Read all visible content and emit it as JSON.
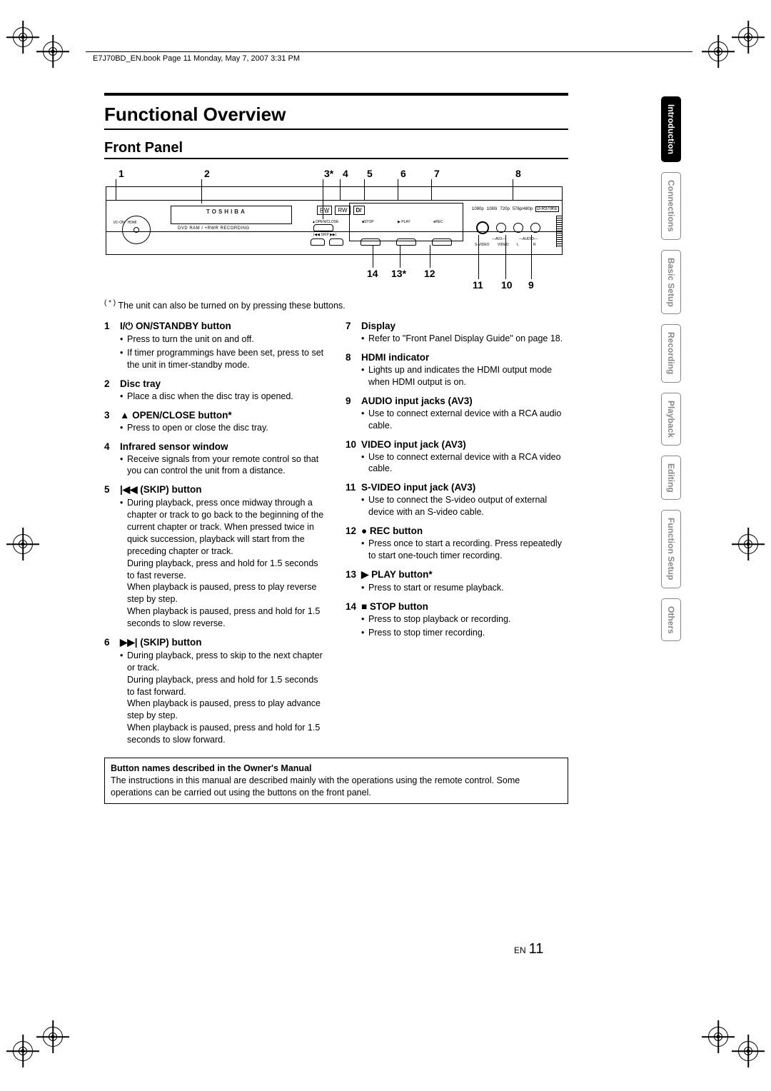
{
  "header": {
    "stamp": "E7J70BD_EN.book  Page 11  Monday, May 7, 2007  3:31 PM"
  },
  "titles": {
    "main": "Functional Overview",
    "sub": "Front Panel"
  },
  "diagram": {
    "top_callouts": [
      "1",
      "2",
      "3*",
      "4",
      "5",
      "6",
      "7",
      "8"
    ],
    "top_x": [
      12,
      132,
      300,
      326,
      360,
      407,
      454,
      568
    ],
    "bottom_callouts_right": [
      "11",
      "10",
      "9"
    ],
    "bottom_callouts_mid": [
      "14",
      "13*",
      "12"
    ],
    "brand": "TOSHIBA",
    "tray_label": "DVD  RAM / +RWR  RECORDING",
    "hdmi_labels": [
      "1080p",
      "1080i",
      "720p",
      "576p/480p",
      "D-R370KE"
    ],
    "btn_labels": {
      "open": "▲OPEN/CLOSE",
      "skipb": "|◀◀   SKIP   ▶▶|",
      "stop": "■STOP",
      "play": "▶ PLAY",
      "rec": "●REC"
    },
    "jack_labels": {
      "sv": "S-VIDEO",
      "vid": "VIDEO",
      "l": "L",
      "r": "R",
      "av3": "—AV3—",
      "aud": "—AUDIO—"
    }
  },
  "asterisk_note": "The unit can also be turned on by pressing these buttons.",
  "asterisk_mark": "( * )",
  "left_items": [
    {
      "num": "1",
      "title_pre": "I/",
      "title_sym": "⏻",
      "title": " ON/STANDBY button",
      "bullets": [
        "Press to turn the unit on and off.",
        "If timer programmings have been set, press to set the unit in timer-standby mode."
      ]
    },
    {
      "num": "2",
      "title": "Disc tray",
      "bullets": [
        "Place a disc when the disc tray is opened."
      ]
    },
    {
      "num": "3",
      "title_sym": "▲",
      "title": " OPEN/CLOSE button*",
      "bullets": [
        "Press to open or close the disc tray."
      ]
    },
    {
      "num": "4",
      "title": "Infrared sensor window",
      "bullets": [
        "Receive signals from your remote control so that you can control the unit from a distance."
      ]
    },
    {
      "num": "5",
      "title_sym": "|◀◀",
      "title": " (SKIP) button",
      "bullets": [
        "During playback, press once midway through a chapter or track to go back to the beginning of the current chapter or track. When pressed twice in quick succession, playback will start from the preceding chapter or track.\nDuring playback, press and hold for 1.5 seconds to fast reverse.\nWhen playback is paused, press to play reverse step by step.\nWhen playback is paused, press and hold for 1.5 seconds to  slow reverse."
      ]
    },
    {
      "num": "6",
      "title_sym": "▶▶|",
      "title": " (SKIP) button",
      "bullets": [
        "During playback, press to skip to the next chapter or track.\nDuring playback, press and hold for 1.5 seconds to fast forward.\nWhen playback is paused, press to play advance step by step.\nWhen playback is paused, press and hold for 1.5 seconds to slow forward."
      ]
    }
  ],
  "right_items": [
    {
      "num": "7",
      "title": "Display",
      "bullets": [
        "Refer to \"Front Panel Display Guide\" on page 18."
      ]
    },
    {
      "num": "8",
      "title": "HDMI indicator",
      "bullets": [
        "Lights up and indicates the HDMI output mode when HDMI output is on."
      ]
    },
    {
      "num": "9",
      "title": "AUDIO input jacks (AV3)",
      "bullets": [
        "Use to connect external device with a RCA audio cable."
      ]
    },
    {
      "num": "10",
      "title": "VIDEO input jack (AV3)",
      "bullets": [
        "Use to connect external device with a RCA video cable."
      ]
    },
    {
      "num": "11",
      "title": "S-VIDEO input jack (AV3)",
      "bullets": [
        "Use to connect the S-video output of external device with an S-video cable."
      ]
    },
    {
      "num": "12",
      "title_sym": "●",
      "title": " REC button",
      "bullets": [
        "Press once to start a recording. Press repeatedly to start one-touch timer recording."
      ]
    },
    {
      "num": "13",
      "title_sym": "▶",
      "title": " PLAY button*",
      "bullets": [
        "Press to start or resume playback."
      ]
    },
    {
      "num": "14",
      "title_sym": "■",
      "title": " STOP button",
      "bullets": [
        "Press to stop playback or recording.",
        "Press to stop timer recording."
      ]
    }
  ],
  "note_box": {
    "title": "Button names described in the Owner's Manual",
    "body": "The instructions in this manual are described mainly with the operations using the remote control. Some operations can be carried out using the buttons on the front panel."
  },
  "sidebar": [
    "Introduction",
    "Connections",
    "Basic Setup",
    "Recording",
    "Playback",
    "Editing",
    "Function Setup",
    "Others"
  ],
  "sidebar_active_index": 0,
  "footer": {
    "prefix": "EN",
    "page": "11"
  },
  "colors": {
    "text": "#000000",
    "muted": "#888888",
    "bg": "#ffffff"
  }
}
